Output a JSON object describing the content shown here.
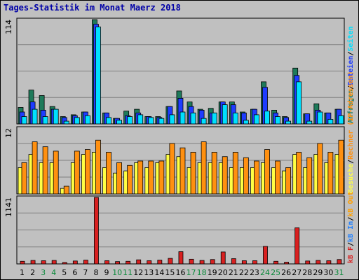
{
  "title": "Tages-Statistik im Monat Maerz 2018",
  "colors": {
    "hits": "#1e7a5a",
    "files": "#1e3cff",
    "pages": "#00e0ff",
    "visits": "#ffff44",
    "sites": "#ff9010",
    "kbin": "#2080ff",
    "kbout": "#ffa000",
    "kbf": "#d82020",
    "weekend": "#0a8a3a",
    "weekday": "#000000"
  },
  "chart_data": [
    {
      "type": "bar",
      "panel": "top",
      "y_max_label": "114",
      "ylim": [
        0,
        114
      ],
      "categories": [
        "1",
        "2",
        "3",
        "4",
        "5",
        "6",
        "7",
        "8",
        "9",
        "10",
        "11",
        "12",
        "13",
        "14",
        "15",
        "16",
        "17",
        "18",
        "19",
        "20",
        "21",
        "22",
        "23",
        "24",
        "25",
        "26",
        "27",
        "28",
        "29",
        "30",
        "31"
      ],
      "weekend": [
        "3",
        "4",
        "10",
        "11",
        "17",
        "18",
        "24",
        "25",
        "31"
      ],
      "series": [
        {
          "name": "Anfragen",
          "values": [
            18,
            37,
            31,
            19,
            8,
            10,
            13,
            114,
            12,
            6,
            14,
            16,
            8,
            8,
            19,
            36,
            24,
            16,
            17,
            24,
            24,
            13,
            16,
            46,
            15,
            8,
            61,
            11,
            22,
            12,
            16
          ]
        },
        {
          "name": "Dateien",
          "values": [
            13,
            24,
            15,
            16,
            7,
            9,
            13,
            109,
            12,
            6,
            9,
            12,
            8,
            7,
            19,
            28,
            19,
            15,
            12,
            24,
            21,
            12,
            16,
            40,
            12,
            7,
            53,
            11,
            15,
            12,
            16
          ]
        },
        {
          "name": "Seiten",
          "values": [
            8,
            16,
            8,
            16,
            3,
            7,
            9,
            106,
            7,
            4,
            8,
            10,
            7,
            6,
            10,
            13,
            12,
            6,
            12,
            21,
            12,
            4,
            10,
            14,
            8,
            3,
            46,
            3,
            13,
            5,
            9
          ]
        }
      ],
      "legend_order": [
        "Dateien",
        "Anfragen"
      ]
    },
    {
      "type": "bar",
      "panel": "middle",
      "y_max_label": "12",
      "ylim": [
        0,
        12
      ],
      "categories": [
        "1",
        "2",
        "3",
        "4",
        "5",
        "6",
        "7",
        "8",
        "9",
        "10",
        "11",
        "12",
        "13",
        "14",
        "15",
        "16",
        "17",
        "18",
        "19",
        "20",
        "21",
        "22",
        "23",
        "24",
        "25",
        "26",
        "27",
        "28",
        "29",
        "30",
        "31"
      ],
      "series": [
        {
          "name": "Besuche",
          "values": [
            4.8,
            7.2,
            5.7,
            5.7,
            1,
            5.7,
            7.2,
            7.6,
            4.8,
            3.8,
            4.2,
            5.7,
            4.8,
            5.7,
            7.2,
            6.8,
            4.8,
            5.7,
            5.7,
            5.7,
            4.8,
            4.8,
            4.8,
            5.7,
            4.8,
            4.2,
            7.2,
            4.8,
            7.2,
            5.7,
            7.2
          ]
        },
        {
          "name": "Rechner (IP-Adressen)",
          "values": [
            5.7,
            9.5,
            8.6,
            7.8,
            1.4,
            7.8,
            8.1,
            9.8,
            7.6,
            5.7,
            5.2,
            6.0,
            6.0,
            6.0,
            9.2,
            8.4,
            7.6,
            9.5,
            7.6,
            6.8,
            7.6,
            6.6,
            6.0,
            8.1,
            6.0,
            4.8,
            7.6,
            6.6,
            9.2,
            7.6,
            9.8
          ]
        }
      ],
      "legend_order": [
        "kB Out",
        "Rechner (IP-Adressen)"
      ]
    },
    {
      "type": "bar",
      "panel": "bottom",
      "y_max_label": "1141",
      "ylim": [
        0,
        1141
      ],
      "categories": [
        "1",
        "2",
        "3",
        "4",
        "5",
        "6",
        "7",
        "8",
        "9",
        "10",
        "11",
        "12",
        "13",
        "14",
        "15",
        "16",
        "17",
        "18",
        "19",
        "20",
        "21",
        "22",
        "23",
        "24",
        "25",
        "26",
        "27",
        "28",
        "29",
        "30",
        "31"
      ],
      "series": [
        {
          "name": "kB F",
          "values": [
            45,
            60,
            55,
            60,
            25,
            50,
            65,
            1141,
            55,
            40,
            45,
            70,
            55,
            65,
            95,
            210,
            80,
            60,
            75,
            205,
            90,
            55,
            55,
            300,
            45,
            30,
            620,
            50,
            60,
            55,
            75
          ]
        }
      ],
      "legend_order": [
        "kB F",
        "kB In",
        "kB Out"
      ]
    }
  ],
  "right_legend": {
    "top": [
      "Anfragen",
      "/",
      "Dateien",
      "/",
      "Seiten"
    ],
    "middle": [
      "Besuche",
      "/",
      "Rechner (IP-Adressen)"
    ],
    "bottom": [
      "kB F",
      "/",
      "kB In",
      "/",
      "kB Out"
    ]
  }
}
